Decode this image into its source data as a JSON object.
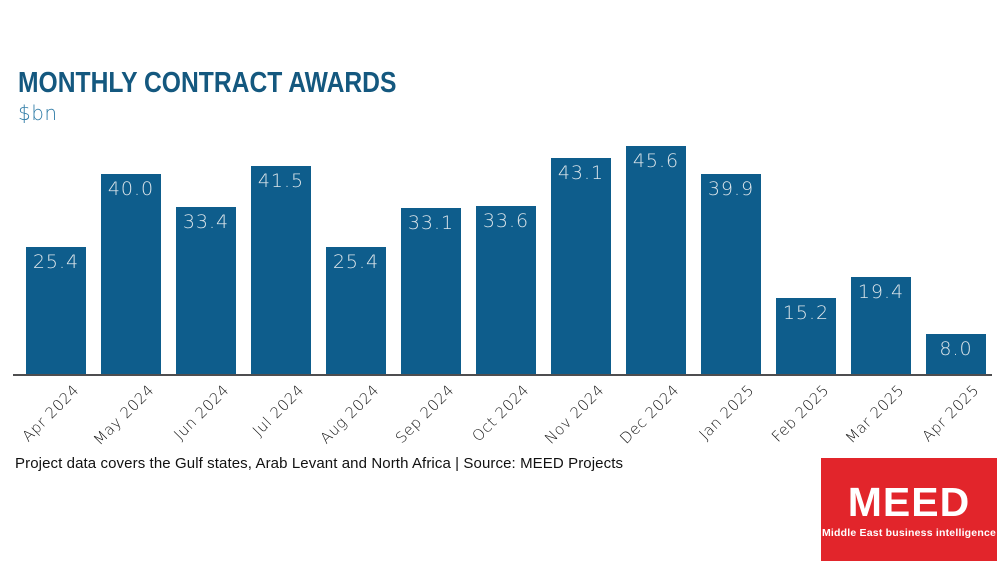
{
  "header": {
    "title": "MONTHLY CONTRACT AWARDS",
    "subtitle": "$bn"
  },
  "chart_data": {
    "type": "bar",
    "categories": [
      "Apr 2024",
      "May 2024",
      "Jun 2024",
      "Jul 2024",
      "Aug 2024",
      "Sep 2024",
      "Oct 2024",
      "Nov 2024",
      "Dec 2024",
      "Jan 2025",
      "Feb 2025",
      "Mar 2025",
      "Apr 2025"
    ],
    "values": [
      25.4,
      40.0,
      33.4,
      41.5,
      25.4,
      33.1,
      33.6,
      43.1,
      45.6,
      39.9,
      15.2,
      19.4,
      8.0
    ],
    "title": "MONTHLY CONTRACT AWARDS",
    "xlabel": "",
    "ylabel": "$bn",
    "ylim": [
      0,
      46
    ],
    "grid": false,
    "legend": null,
    "value_labels_position": "inside-top",
    "value_label_decimals": 1
  },
  "footer": {
    "text": "Project data covers the Gulf states, Arab Levant and North Africa | Source: MEED Projects"
  },
  "logo": {
    "name": "MEED",
    "tagline": "Middle East business intelligence",
    "bg_color": "#E2252B",
    "text_color": "#FFFFFF"
  },
  "colors": {
    "bar": "#0E5D8C",
    "title": "#14587F",
    "subtitle": "#2F7CA7",
    "axis_line": "#4E4E50",
    "bar_value_label": "#DCE5EA",
    "x_axis_label": "#1A1A1A",
    "footer_text": "#111111"
  }
}
